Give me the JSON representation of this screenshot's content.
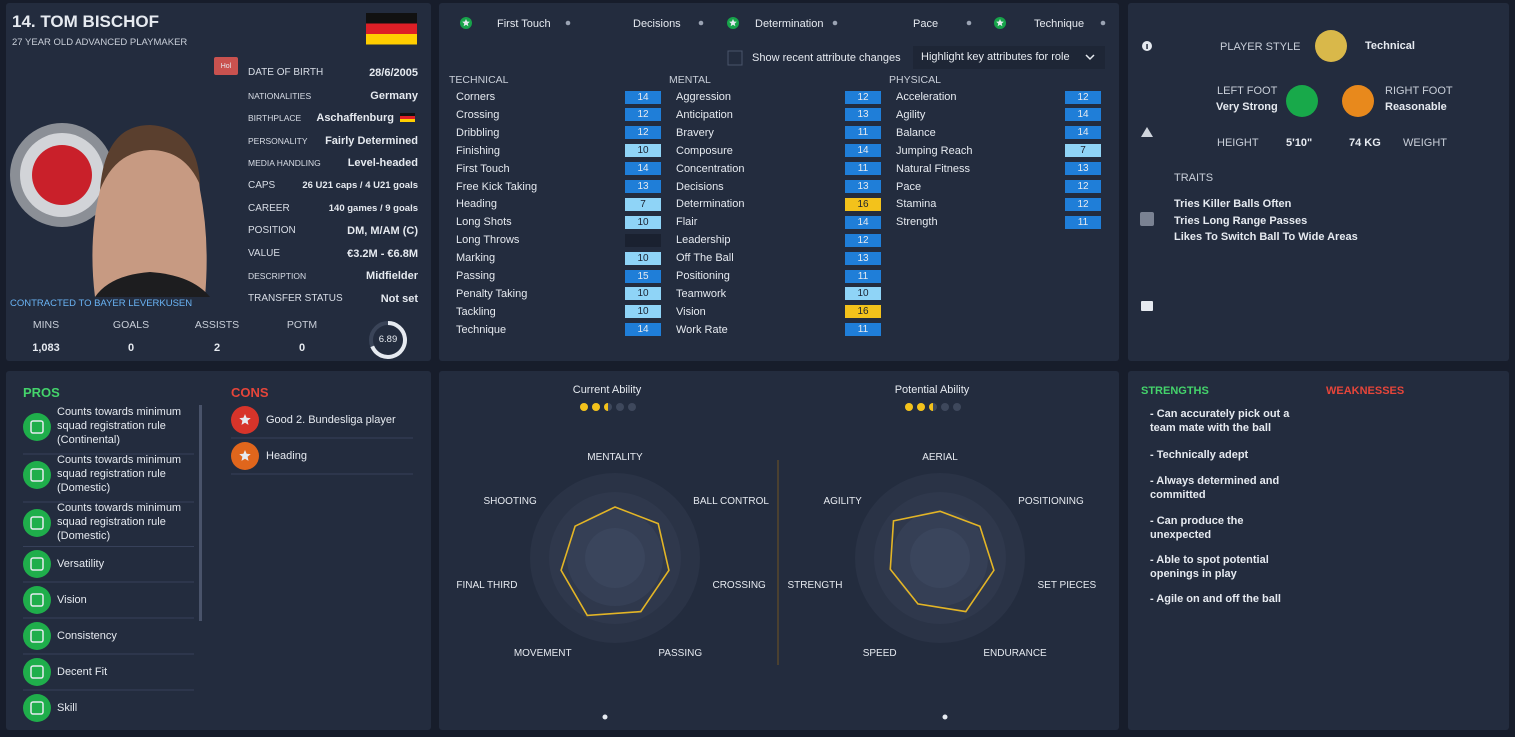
{
  "profile": {
    "name": "14. TOM BISCHOF",
    "subtitle": "27 YEAR OLD  ADVANCED PLAYMAKER",
    "badge": "Hol",
    "contract": "CONTRACTED TO BAYER LEVERKUSEN",
    "details": [
      {
        "label": "DATE OF BIRTH",
        "value": "28/6/2005"
      },
      {
        "label": "NATIONALITIES",
        "value": "Germany"
      },
      {
        "label": "BIRTHPLACE",
        "value": "Aschaffenburg"
      },
      {
        "label": "PERSONALITY",
        "value": "Fairly Determined"
      },
      {
        "label": "MEDIA HANDLING",
        "value": "Level-headed"
      },
      {
        "label": "CAPS",
        "value": "26 U21 caps / 4 U21 goals"
      },
      {
        "label": "CAREER",
        "value": "140 games /    9  goals"
      },
      {
        "label": "POSITION",
        "value": "DM, M/AM (C)"
      },
      {
        "label": "VALUE",
        "value": "€3.2M - €6.8M"
      },
      {
        "label": "DESCRIPTION",
        "value": "Midfielder"
      },
      {
        "label": "TRANSFER STATUS",
        "value": "Not set"
      }
    ],
    "stats": [
      {
        "label": "MINS",
        "value": "1,083"
      },
      {
        "label": "GOALS",
        "value": 0
      },
      {
        "label": "ASSISTS",
        "value": 2
      },
      {
        "label": "POTM",
        "value": 0
      }
    ],
    "rating": 6.89
  },
  "key_attributes": {
    "items": [
      {
        "name": "First Touch",
        "starred": true
      },
      {
        "name": "Decisions",
        "starred": false
      },
      {
        "name": "Determination",
        "starred": true
      },
      {
        "name": "Pace",
        "starred": false
      },
      {
        "name": "Technique",
        "starred": true
      }
    ],
    "show_changes": "Show recent attribute changes",
    "highlight": "Highlight key attributes for role"
  },
  "attributes": [
    {
      "title": "TECHNICAL",
      "rows": [
        {
          "name": "Corners",
          "value": 14
        },
        {
          "name": "Crossing",
          "value": 12
        },
        {
          "name": "Dribbling",
          "value": 12
        },
        {
          "name": "Finishing",
          "value": 10
        },
        {
          "name": "First Touch",
          "value": 14
        },
        {
          "name": "Free Kick Taking",
          "value": 13
        },
        {
          "name": "Heading",
          "value": 7
        },
        {
          "name": "Long Shots",
          "value": 10
        },
        {
          "name": "Long Throws",
          "value": null
        },
        {
          "name": "Marking",
          "value": 10
        },
        {
          "name": "Passing",
          "value": 15
        },
        {
          "name": "Penalty Taking",
          "value": 10
        },
        {
          "name": "Tackling",
          "value": 10
        },
        {
          "name": "Technique",
          "value": 14
        }
      ]
    },
    {
      "title": "MENTAL",
      "rows": [
        {
          "name": "Aggression",
          "value": 12
        },
        {
          "name": "Anticipation",
          "value": 13
        },
        {
          "name": "Bravery",
          "value": 11
        },
        {
          "name": "Composure",
          "value": 14
        },
        {
          "name": "Concentration",
          "value": 11
        },
        {
          "name": "Decisions",
          "value": 13
        },
        {
          "name": "Determination",
          "value": 16
        },
        {
          "name": "Flair",
          "value": 14
        },
        {
          "name": "Leadership",
          "value": 12
        },
        {
          "name": "Off The Ball",
          "value": 13
        },
        {
          "name": "Positioning",
          "value": 11
        },
        {
          "name": "Teamwork",
          "value": 10
        },
        {
          "name": "Vision",
          "value": 16
        },
        {
          "name": "Work Rate",
          "value": 11
        }
      ]
    },
    {
      "title": "PHYSICAL",
      "rows": [
        {
          "name": "Acceleration",
          "value": 12
        },
        {
          "name": "Agility",
          "value": 14
        },
        {
          "name": "Balance",
          "value": 14
        },
        {
          "name": "Jumping Reach",
          "value": 7
        },
        {
          "name": "Natural Fitness",
          "value": 13
        },
        {
          "name": "Pace",
          "value": 12
        },
        {
          "name": "Stamina",
          "value": 12
        },
        {
          "name": "Strength",
          "value": 11
        }
      ]
    }
  ],
  "player_info": {
    "style_label": "PLAYER STYLE",
    "style": "Technical",
    "left_foot_label": "LEFT FOOT",
    "left_foot": "Very Strong",
    "right_foot_label": "RIGHT FOOT",
    "right_foot": "Reasonable",
    "height_label": "HEIGHT",
    "height": "5'10\"",
    "weight": "74 KG",
    "weight_label": "WEIGHT",
    "traits_title": "TRAITS",
    "traits": [
      "Tries Killer Balls Often",
      "Tries Long Range Passes",
      "Likes To Switch Ball To Wide Areas"
    ]
  },
  "pros": {
    "title": "PROS",
    "items": [
      "Counts towards minimum squad registration rule (Continental)",
      "Counts towards minimum squad registration rule (Domestic)",
      "Counts towards minimum squad registration rule (Domestic)",
      "Versatility",
      "Vision",
      "Consistency",
      "Decent Fit",
      "Skill"
    ]
  },
  "cons": {
    "title": "CONS",
    "items": [
      "Good 2. Bundesliga player",
      "Heading"
    ]
  },
  "radars": [
    {
      "title": "Current Ability",
      "stars": 2.5,
      "labels": [
        "MENTALITY",
        "BALL CONTROL",
        "CROSSING",
        "PASSING",
        "MOVEMENT",
        "FINAL THIRD",
        "SHOOTING"
      ],
      "values": [
        12,
        13,
        13,
        14,
        15,
        13,
        12
      ],
      "rlim": [
        0,
        20
      ]
    },
    {
      "title": "Potential Ability",
      "stars": 2.5,
      "labels": [
        "AERIAL",
        "POSITIONING",
        "SET PIECES",
        "ENDURANCE",
        "SPEED",
        "STRENGTH",
        "AGILITY"
      ],
      "values": [
        11,
        12,
        13,
        14,
        12,
        12,
        14
      ],
      "rlim": [
        0,
        20
      ]
    }
  ],
  "strengths": {
    "title": "STRENGTHS",
    "items": [
      "- Can accurately pick out a team mate with the ball",
      "- Technically adept",
      "- Always determined and committed",
      "- Can produce the unexpected",
      "- Able to spot potential openings in play",
      "- Agile on and off the ball"
    ]
  },
  "weaknesses": {
    "title": "WEAKNESSES"
  }
}
